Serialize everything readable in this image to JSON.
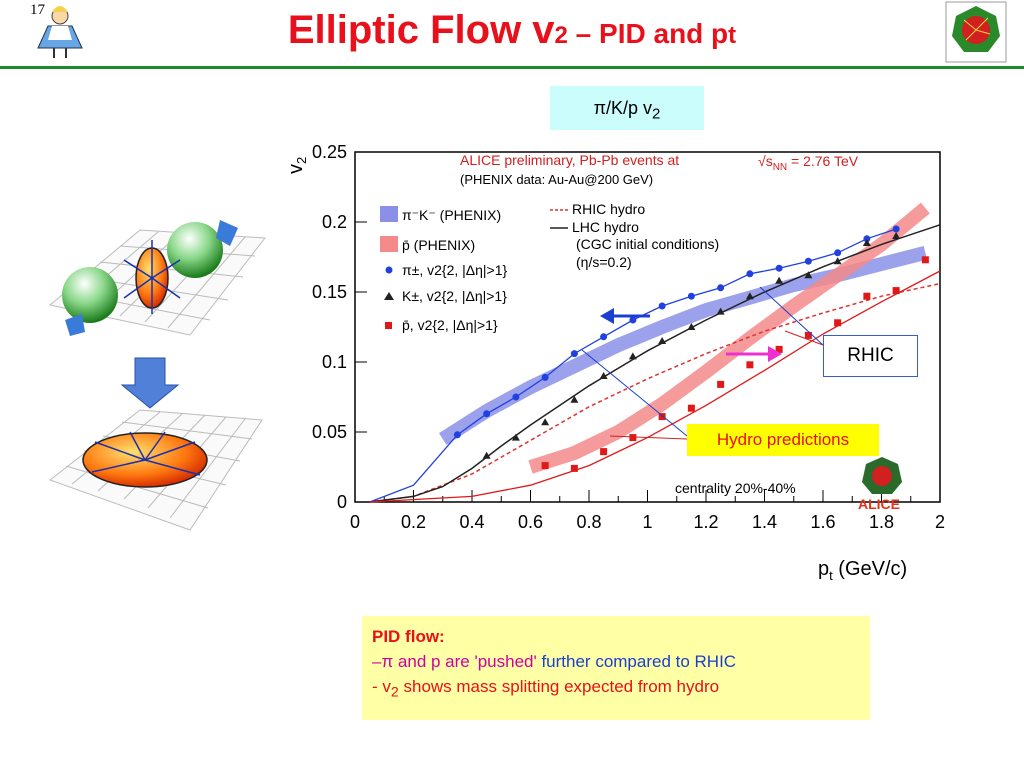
{
  "slide": {
    "number": "17"
  },
  "title": {
    "main": "Elliptic Flow v",
    "sub": "2",
    "rest": " – PID and p",
    "sub2": "t"
  },
  "subtitle_box": {
    "pre": "π/K/p v",
    "sub": "2"
  },
  "annotations": {
    "rhic": "RHIC",
    "hydro": "Hydro predictions",
    "centrality": "centrality 20%-40%",
    "logo": "ALICE"
  },
  "info": {
    "heading": "PID flow:",
    "line1_a": "–π and p are 'pushed'",
    "line1_b": " further compared to RHIC",
    "line2_pre": "- v",
    "line2_sub": "2",
    "line2_rest": " shows mass splitting expected from hydro"
  },
  "colors": {
    "title": "#e8101a",
    "rule": "#1f8a2a",
    "pion": "#2040e0",
    "kaon": "#222222",
    "proton": "#e01818",
    "band_pi": "#8a90e8",
    "band_p": "#f48a8a"
  },
  "chart_data": {
    "type": "scatter",
    "header_line1": "ALICE preliminary, Pb-Pb events at",
    "header_energy": "s",
    "header_energy_sub": "NN",
    "header_energy_val": " = 2.76 TeV",
    "header_line2": "(PHENIX data: Au-Au@200 GeV)",
    "xlabel": "p",
    "xlabel_sub": "t",
    "xlabel_unit": " (GeV/c)",
    "ylabel": "v",
    "ylabel_sub": "2",
    "xlim": [
      0,
      2
    ],
    "ylim": [
      0,
      0.25
    ],
    "xticks": [
      "0",
      "0.2",
      "0.4",
      "0.6",
      "0.8",
      "1",
      "1.2",
      "1.4",
      "1.6",
      "1.8",
      "2"
    ],
    "yticks": [
      "0",
      "0.05",
      "0.1",
      "0.15",
      "0.2",
      "0.25"
    ],
    "legend_left": [
      "π⁻K⁻ (PHENIX)",
      "p̄ (PHENIX)",
      "π±, v2{2, |Δη|>1}",
      "K±, v2{2, |Δη|>1}",
      "p̄, v2{2, |Δη|>1}"
    ],
    "legend_right": [
      "RHIC hydro",
      "LHC hydro",
      "(CGC initial conditions)",
      "(η/s=0.2)"
    ],
    "series": [
      {
        "name": "π±, v2{2, |Δη|>1}",
        "marker": "circle",
        "x": [
          0.35,
          0.45,
          0.55,
          0.65,
          0.75,
          0.85,
          0.95,
          1.05,
          1.15,
          1.25,
          1.35,
          1.45,
          1.55,
          1.65,
          1.75,
          1.85
        ],
        "y": [
          0.048,
          0.063,
          0.075,
          0.089,
          0.106,
          0.118,
          0.13,
          0.14,
          0.147,
          0.153,
          0.163,
          0.167,
          0.172,
          0.178,
          0.188,
          0.195
        ]
      },
      {
        "name": "K±, v2{2, |Δη|>1}",
        "marker": "triangle",
        "x": [
          0.45,
          0.55,
          0.65,
          0.75,
          0.85,
          0.95,
          1.05,
          1.15,
          1.25,
          1.35,
          1.45,
          1.55,
          1.65,
          1.75,
          1.85
        ],
        "y": [
          0.033,
          0.046,
          0.057,
          0.073,
          0.09,
          0.104,
          0.115,
          0.125,
          0.136,
          0.147,
          0.158,
          0.162,
          0.172,
          0.185,
          0.19
        ]
      },
      {
        "name": "p̄, v2{2, |Δη|>1}",
        "marker": "square",
        "x": [
          0.65,
          0.75,
          0.85,
          0.95,
          1.05,
          1.15,
          1.25,
          1.35,
          1.45,
          1.55,
          1.65,
          1.75,
          1.85,
          1.95
        ],
        "y": [
          0.026,
          0.024,
          0.036,
          0.046,
          0.061,
          0.067,
          0.084,
          0.098,
          0.109,
          0.119,
          0.128,
          0.147,
          0.151,
          0.173
        ]
      },
      {
        "name": "π⁻K⁻ (PHENIX)",
        "type": "band",
        "x": [
          0.3,
          0.45,
          0.6,
          0.75,
          0.9,
          1.05,
          1.2,
          1.35,
          1.5,
          1.65,
          1.8,
          1.95
        ],
        "y": [
          0.045,
          0.065,
          0.082,
          0.097,
          0.112,
          0.125,
          0.137,
          0.146,
          0.155,
          0.162,
          0.17,
          0.178
        ]
      },
      {
        "name": "p̄ (PHENIX)",
        "type": "band",
        "x": [
          0.6,
          0.75,
          0.9,
          1.05,
          1.2,
          1.35,
          1.5,
          1.65,
          1.8,
          1.95
        ],
        "y": [
          0.025,
          0.035,
          0.05,
          0.07,
          0.093,
          0.117,
          0.14,
          0.162,
          0.184,
          0.21
        ]
      },
      {
        "name": "RHIC hydro",
        "type": "dashed",
        "x": [
          0.05,
          0.2,
          0.4,
          0.6,
          0.8,
          1.0,
          1.2,
          1.4,
          1.6,
          1.8,
          2.0
        ],
        "y": [
          0.0,
          0.004,
          0.02,
          0.044,
          0.068,
          0.088,
          0.106,
          0.122,
          0.135,
          0.147,
          0.156
        ]
      },
      {
        "name": "LHC hydro",
        "type": "line",
        "x": [
          0.05,
          0.2,
          0.3,
          0.4,
          0.5,
          0.6,
          0.8,
          1.0,
          1.2,
          1.4,
          1.6,
          1.8,
          2.0
        ],
        "y": [
          0.0,
          0.004,
          0.011,
          0.024,
          0.04,
          0.055,
          0.083,
          0.108,
          0.13,
          0.15,
          0.168,
          0.184,
          0.198
        ]
      }
    ]
  }
}
